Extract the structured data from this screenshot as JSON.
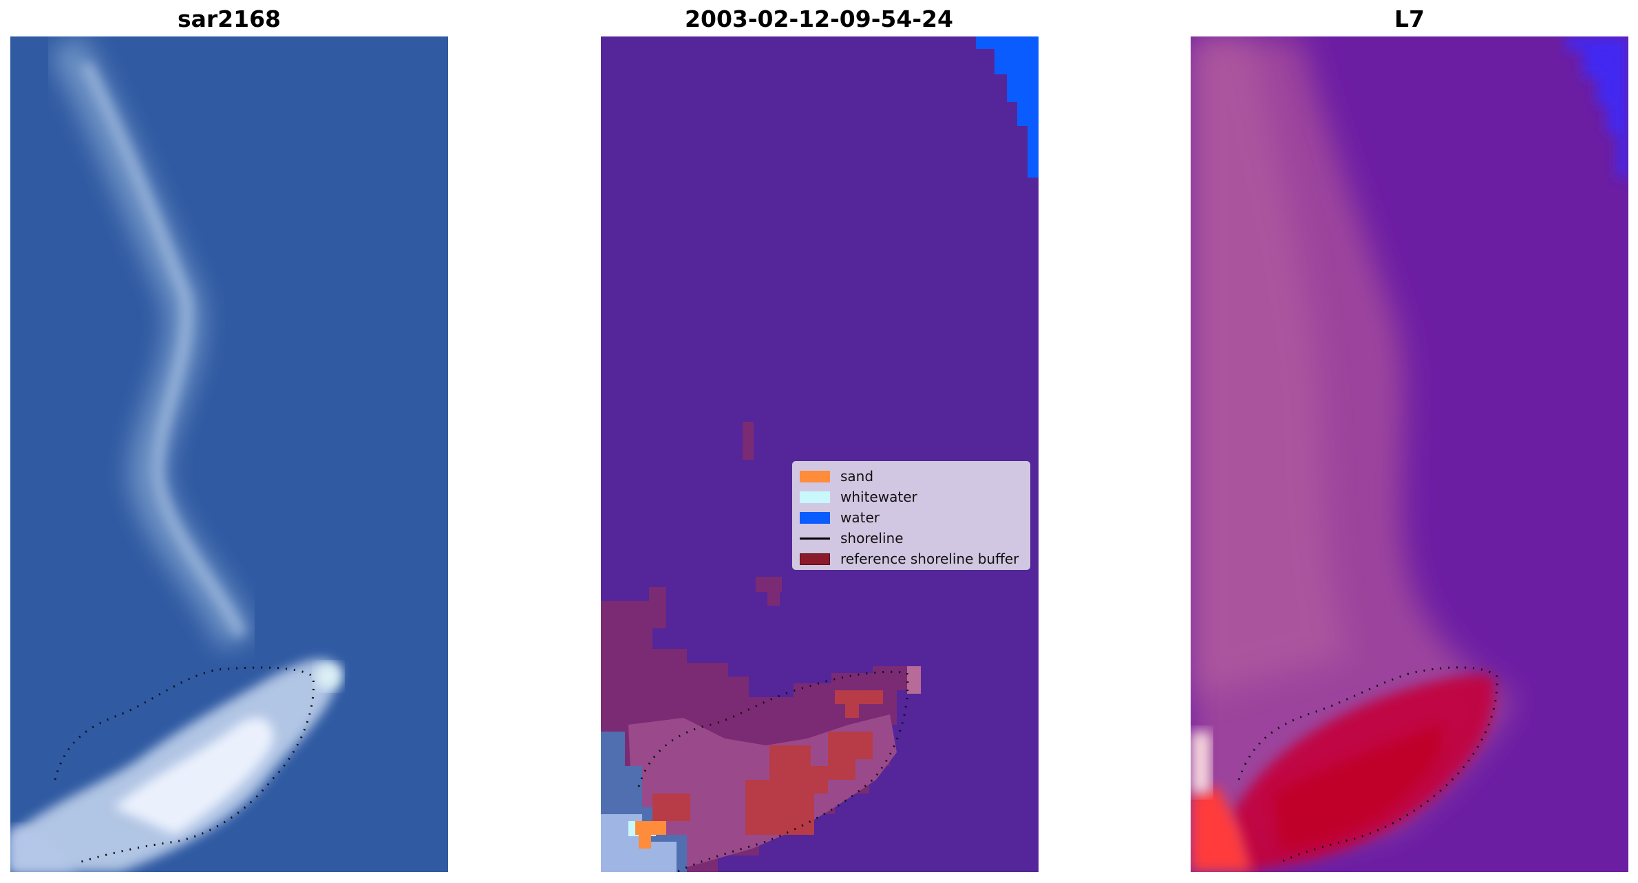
{
  "panels": [
    {
      "title": "sar2168"
    },
    {
      "title": "2003-02-12-09-54-24"
    },
    {
      "title": "L7"
    }
  ],
  "legend": {
    "items": [
      {
        "label": "sand",
        "color": "#ff8c3a"
      },
      {
        "label": "whitewater",
        "color": "#c8f8fb"
      },
      {
        "label": "water",
        "color": "#0a5cff"
      },
      {
        "label": "shoreline",
        "color": "#000000"
      },
      {
        "label": "reference shoreline buffer",
        "color": "#8b1a2a"
      }
    ]
  },
  "colors": {
    "classified_background": "#55259a",
    "sar_water": "#2a56a0",
    "l7_background": "#6c1ea3",
    "l7_sand": "#c4003a"
  }
}
